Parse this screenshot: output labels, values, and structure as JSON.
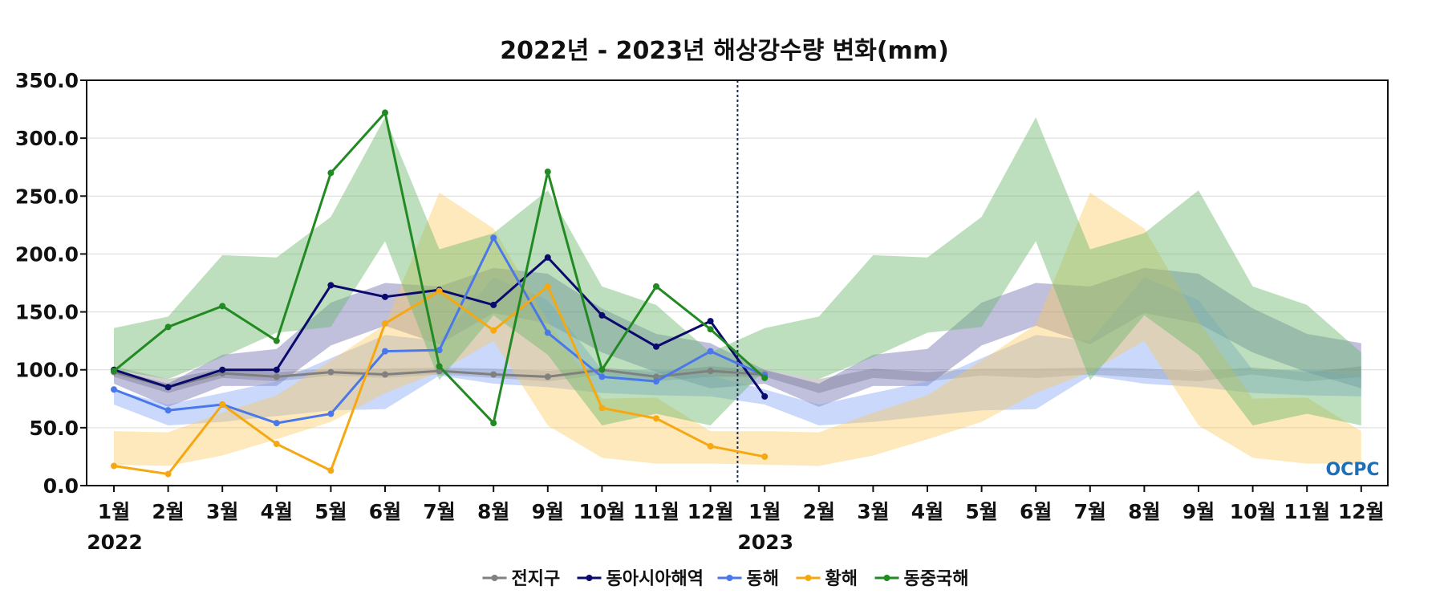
{
  "chart_data": {
    "type": "line",
    "title": "2022년 - 2023년 해상강수량 변화(mm)",
    "ylim": [
      0,
      350
    ],
    "yticks": [
      "0.0",
      "50.0",
      "100.0",
      "150.0",
      "200.0",
      "250.0",
      "300.0",
      "350.0"
    ],
    "ytick_values": [
      0,
      50,
      100,
      150,
      200,
      250,
      300,
      350
    ],
    "grid": "horizontal",
    "legend_position": "bottom-center",
    "x_labels": [
      "1월",
      "2월",
      "3월",
      "4월",
      "5월",
      "6월",
      "7월",
      "8월",
      "9월",
      "10월",
      "11월",
      "12월",
      "1월",
      "2월",
      "3월",
      "4월",
      "5월",
      "6월",
      "7월",
      "8월",
      "9월",
      "10월",
      "11월",
      "12월"
    ],
    "year_labels": [
      {
        "text": "2022",
        "index": 0
      },
      {
        "text": "2023",
        "index": 12
      }
    ],
    "divider_index": 11.5,
    "logo": "OCPC",
    "series": [
      {
        "name": "전지구",
        "color": "#808080",
        "band_color": "#9a9a9a",
        "band_opacity": 0.45,
        "values": [
          98,
          85,
          97,
          94,
          98,
          96,
          99,
          96,
          94,
          100,
          94,
          99,
          96,
          null,
          null,
          null,
          null,
          null,
          null,
          null,
          null,
          null,
          null,
          null
        ],
        "band_upper": [
          103,
          92,
          101,
          98,
          101,
          101,
          102,
          101,
          99,
          102,
          98,
          103,
          100,
          92,
          101,
          98,
          101,
          101,
          102,
          101,
          99,
          102,
          98,
          103
        ],
        "band_lower": [
          94,
          80,
          93,
          90,
          95,
          93,
          96,
          93,
          90,
          96,
          90,
          94,
          94,
          80,
          93,
          90,
          95,
          93,
          96,
          93,
          90,
          96,
          90,
          94
        ]
      },
      {
        "name": "동아시아해역",
        "color": "#0a0a6e",
        "band_color": "#4a4a9e",
        "band_opacity": 0.35,
        "values": [
          100,
          85,
          100,
          100,
          173,
          163,
          169,
          156,
          197,
          147,
          120,
          142,
          77,
          null,
          null,
          null,
          null,
          null,
          null,
          null,
          null,
          null,
          null,
          null
        ],
        "band_upper": [
          100,
          88,
          113,
          118,
          158,
          175,
          172,
          188,
          183,
          153,
          131,
          123,
          100,
          88,
          113,
          118,
          158,
          175,
          172,
          188,
          183,
          153,
          131,
          123
        ],
        "band_lower": [
          88,
          68,
          86,
          86,
          121,
          138,
          122,
          149,
          140,
          115,
          98,
          84,
          88,
          68,
          86,
          86,
          121,
          138,
          122,
          149,
          140,
          115,
          98,
          84
        ]
      },
      {
        "name": "동해",
        "color": "#4a78e8",
        "band_color": "#7b9ef5",
        "band_opacity": 0.4,
        "values": [
          83,
          65,
          70,
          54,
          62,
          116,
          117,
          214,
          132,
          94,
          90,
          116,
          95,
          null,
          null,
          null,
          null,
          null,
          null,
          null,
          null,
          null,
          null,
          null
        ],
        "band_upper": [
          83,
          70,
          80,
          90,
          110,
          130,
          125,
          180,
          160,
          100,
          100,
          95,
          83,
          70,
          80,
          90,
          110,
          130,
          125,
          180,
          160,
          100,
          100,
          95
        ],
        "band_lower": [
          70,
          52,
          55,
          60,
          65,
          66,
          95,
          88,
          85,
          80,
          78,
          77,
          70,
          52,
          55,
          60,
          65,
          66,
          95,
          88,
          85,
          80,
          78,
          77
        ]
      },
      {
        "name": "황해",
        "color": "#f5a812",
        "band_color": "#fcc758",
        "band_opacity": 0.4,
        "values": [
          17,
          10,
          70,
          36,
          13,
          140,
          168,
          134,
          172,
          67,
          58,
          34,
          25,
          null,
          null,
          null,
          null,
          null,
          null,
          null,
          null,
          null,
          null,
          null
        ],
        "band_upper": [
          47,
          46,
          63,
          78,
          108,
          139,
          253,
          222,
          142,
          75,
          76,
          47,
          47,
          46,
          63,
          78,
          108,
          139,
          253,
          222,
          142,
          75,
          76,
          47
        ],
        "band_lower": [
          18,
          17,
          26,
          40,
          55,
          80,
          98,
          125,
          52,
          24,
          19,
          19,
          18,
          17,
          26,
          40,
          55,
          80,
          98,
          125,
          52,
          24,
          19,
          19
        ]
      },
      {
        "name": "동중국해",
        "color": "#228a22",
        "band_color": "#6cb86c",
        "band_opacity": 0.45,
        "values": [
          99,
          137,
          155,
          125,
          270,
          322,
          103,
          54,
          271,
          100,
          172,
          135,
          93,
          null,
          null,
          null,
          null,
          null,
          null,
          null,
          null,
          null,
          null,
          null
        ],
        "band_upper": [
          136,
          146,
          199,
          197,
          232,
          318,
          204,
          218,
          255,
          172,
          156,
          115,
          136,
          146,
          199,
          197,
          232,
          318,
          204,
          218,
          255,
          172,
          156,
          115
        ],
        "band_lower": [
          100,
          92,
          111,
          132,
          137,
          211,
          91,
          147,
          113,
          52,
          62,
          52,
          100,
          92,
          111,
          132,
          137,
          211,
          91,
          147,
          113,
          52,
          62,
          52
        ]
      }
    ]
  }
}
